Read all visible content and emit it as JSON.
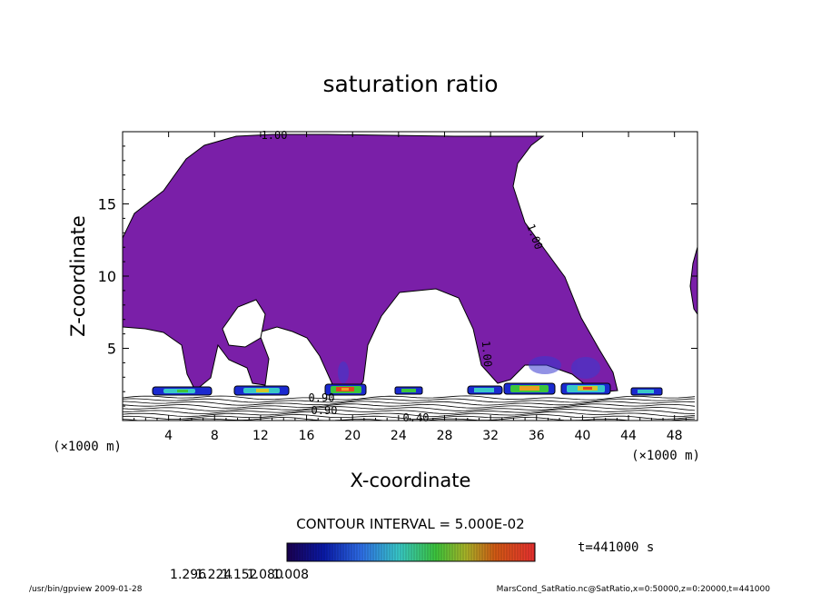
{
  "chart_data": {
    "type": "contour",
    "title": "saturation ratio",
    "xlabel": "X-coordinate",
    "ylabel": "Z-coordinate",
    "x_unit": "(×1000 m)",
    "y_unit": "(×1000 m)",
    "xlim": [
      0,
      50
    ],
    "ylim": [
      0,
      20
    ],
    "x_ticks": [
      4,
      8,
      12,
      16,
      20,
      24,
      28,
      32,
      36,
      40,
      44,
      48
    ],
    "y_ticks": [
      5,
      10,
      15
    ],
    "fill_color": "#7a1fa8",
    "contour_interval": "CONTOUR INTERVAL = 5.000E-02",
    "contour_labels": [
      "1.00",
      "1.00",
      "1.00",
      "0.90",
      "0.90",
      "0.40"
    ],
    "colorbar": {
      "tick_labels": [
        "1.008",
        "1.080",
        "1.152",
        "1.224",
        "1.296"
      ],
      "min": 1.008,
      "max": 1.296
    },
    "time_label": "t=441000 s",
    "footer_left": "/usr/bin/gpview  2009-01-28",
    "footer_right": "MarsCond_SatRatio.nc@SatRatio,x=0:50000,z=0:20000,t=441000"
  }
}
